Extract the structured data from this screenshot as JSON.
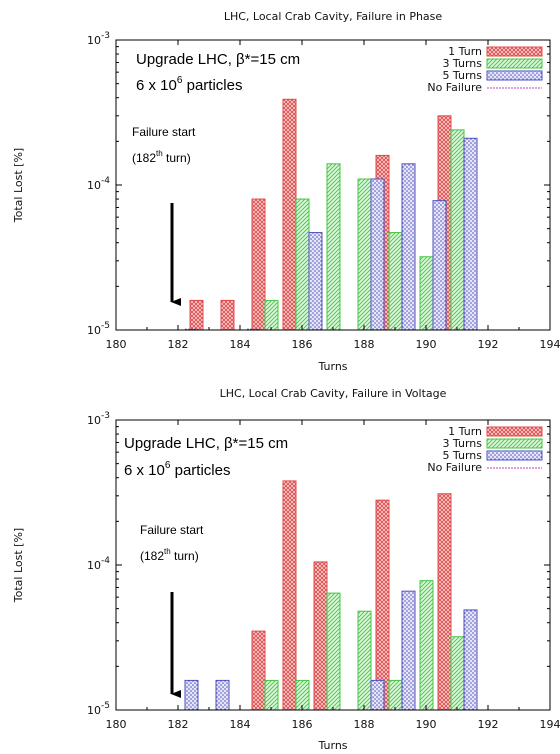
{
  "chart_data": [
    {
      "type": "bar",
      "title": "LHC, Local Crab Cavity, Failure in Phase",
      "xlabel": "Turns",
      "ylabel": "Total Lost [%]",
      "xlim": [
        180,
        194
      ],
      "ylim": [
        1e-05,
        0.001
      ],
      "yscale": "log",
      "x_ticks": [
        "180",
        "182",
        "184",
        "186",
        "188",
        "190",
        "192",
        "194"
      ],
      "y_ticks": [
        {
          "base": "10",
          "exp": "-5"
        },
        {
          "base": "10",
          "exp": "-4"
        },
        {
          "base": "10",
          "exp": "-3"
        }
      ],
      "legend_position": "top-right",
      "series": [
        {
          "name": "1 Turn",
          "color": "#e04848",
          "x": [
            183,
            184,
            185,
            186,
            189,
            191
          ],
          "values": [
            1.6e-05,
            1.6e-05,
            8e-05,
            0.00039,
            0.00016,
            0.0003
          ]
        },
        {
          "name": "3 Turns",
          "color": "#40c840",
          "x": [
            185,
            186,
            187,
            188,
            189,
            190,
            191
          ],
          "values": [
            1.6e-05,
            8e-05,
            0.00014,
            0.00011,
            4.7e-05,
            3.2e-05,
            0.00024
          ]
        },
        {
          "name": "5 Turns",
          "color": "#5050c0",
          "x": [
            182,
            184,
            186,
            188,
            189,
            190,
            191
          ],
          "values": [
            1e-05,
            1e-05,
            4.7e-05,
            0.00011,
            0.00014,
            7.8e-05,
            0.00021
          ]
        },
        {
          "name": "No Failure",
          "color": "#c040c0",
          "x": [],
          "values": []
        }
      ],
      "annotations": {
        "heading": "Upgrade LHC, β*=15 cm",
        "particles_pre": "6 x 10",
        "particles_exp": "6",
        "particles_post": " particles",
        "failure_line1": "Failure start",
        "failure_pre": "(182",
        "failure_sup": "th",
        "failure_post": " turn)",
        "arrow_x": 182
      }
    },
    {
      "type": "bar",
      "title": "LHC, Local Crab Cavity, Failure in Voltage",
      "xlabel": "Turns",
      "ylabel": "Total Lost [%]",
      "xlim": [
        180,
        194
      ],
      "ylim": [
        1e-05,
        0.001
      ],
      "yscale": "log",
      "x_ticks": [
        "180",
        "182",
        "184",
        "186",
        "188",
        "190",
        "192",
        "194"
      ],
      "y_ticks": [
        {
          "base": "10",
          "exp": "-5"
        },
        {
          "base": "10",
          "exp": "-4"
        },
        {
          "base": "10",
          "exp": "-3"
        }
      ],
      "legend_position": "top-right",
      "series": [
        {
          "name": "1 Turn",
          "color": "#e04848",
          "x": [
            185,
            186,
            187,
            189,
            191
          ],
          "values": [
            3.5e-05,
            0.00038,
            0.000105,
            0.00028,
            0.00031
          ]
        },
        {
          "name": "3 Turns",
          "color": "#40c840",
          "x": [
            185,
            186,
            187,
            188,
            189,
            190,
            191
          ],
          "values": [
            1.6e-05,
            1.6e-05,
            6.4e-05,
            4.8e-05,
            1.6e-05,
            7.8e-05,
            3.2e-05
          ]
        },
        {
          "name": "5 Turns",
          "color": "#5050c0",
          "x": [
            182,
            183,
            188,
            189,
            191
          ],
          "values": [
            1.6e-05,
            1.6e-05,
            1.6e-05,
            6.6e-05,
            4.9e-05
          ]
        },
        {
          "name": "No Failure",
          "color": "#c040c0",
          "x": [],
          "values": []
        }
      ],
      "annotations": {
        "heading": "Upgrade LHC, β*=15 cm",
        "particles_pre": "6 x 10",
        "particles_exp": "6",
        "particles_post": " particles",
        "failure_line1": "Failure start",
        "failure_pre": "(182",
        "failure_sup": "th",
        "failure_post": " turn)",
        "arrow_x": 182
      }
    }
  ]
}
